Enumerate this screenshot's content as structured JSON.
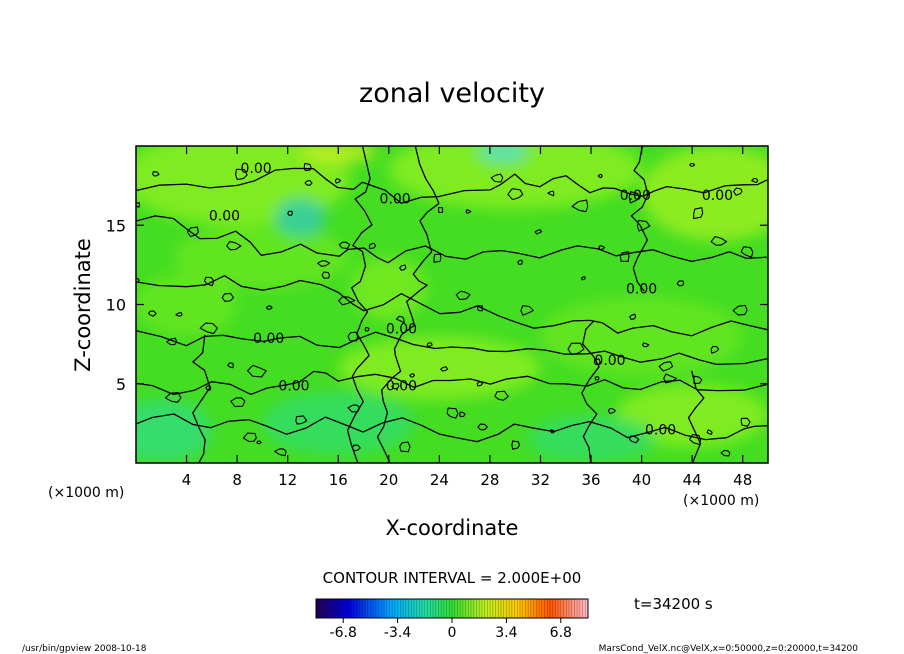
{
  "chart_data": {
    "type": "heatmap",
    "title": "zonal velocity",
    "xlabel": "X-coordinate",
    "ylabel": "Z-coordinate",
    "x_unit": "(×1000 m)",
    "y_unit": "(×1000 m)",
    "xlim": [
      0,
      50
    ],
    "ylim": [
      0,
      20
    ],
    "x_ticks": [
      4,
      8,
      12,
      16,
      20,
      24,
      28,
      32,
      36,
      40,
      44,
      48
    ],
    "y_ticks": [
      5,
      10,
      15
    ],
    "contour_level": 0.0,
    "contour_labels": [
      "0.00",
      "0.00",
      "0.00",
      "0.00",
      "0.00",
      "0.00",
      "0.00",
      "0.00",
      "0.00",
      "0.00",
      "0.00",
      "0.00"
    ],
    "contour_interval": "CONTOUR INTERVAL = 2.000E+00",
    "time_label": "t=34200 s",
    "colorbar": {
      "range": [
        -8.5,
        8.5
      ],
      "ticks": [
        "-6.8",
        "-3.4",
        "0",
        "3.4",
        "6.8"
      ],
      "tick_values": [
        -6.8,
        -3.4,
        0,
        3.4,
        6.8
      ]
    }
  },
  "footer": {
    "left": "/usr/bin/gpview   2008-10-18",
    "right": "MarsCond_VelX.nc@VelX,x=0:50000,z=0:20000,t=34200"
  },
  "colors": {
    "field_base": "#44dd22",
    "field_light": "#88ee22",
    "field_cyan": "#33dd88",
    "contour": "#000000"
  }
}
